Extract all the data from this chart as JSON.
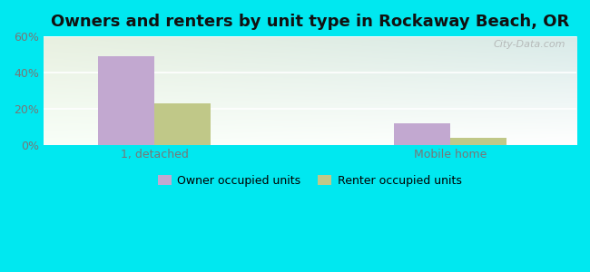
{
  "title": "Owners and renters by unit type in Rockaway Beach, OR",
  "categories": [
    "1, detached",
    "Mobile home"
  ],
  "owner_values": [
    49,
    12
  ],
  "renter_values": [
    23,
    4
  ],
  "owner_color": "#c2a8d0",
  "renter_color": "#c0c888",
  "ylim": [
    0,
    60
  ],
  "yticks": [
    0,
    20,
    40,
    60
  ],
  "ytick_labels": [
    "0%",
    "20%",
    "40%",
    "60%"
  ],
  "background_color": "#00e8f0",
  "plot_bg_color_topleft": "#e8f0e0",
  "plot_bg_color_topright": "#d8eae8",
  "plot_bg_color_bottomleft": "#f8fff8",
  "plot_bg_color_bottomright": "#ffffff",
  "title_fontsize": 13,
  "legend_labels": [
    "Owner occupied units",
    "Renter occupied units"
  ],
  "bar_width": 0.38,
  "group_positions": [
    1.0,
    3.0
  ],
  "xlim": [
    0.25,
    3.85
  ],
  "watermark": "City-Data.com"
}
